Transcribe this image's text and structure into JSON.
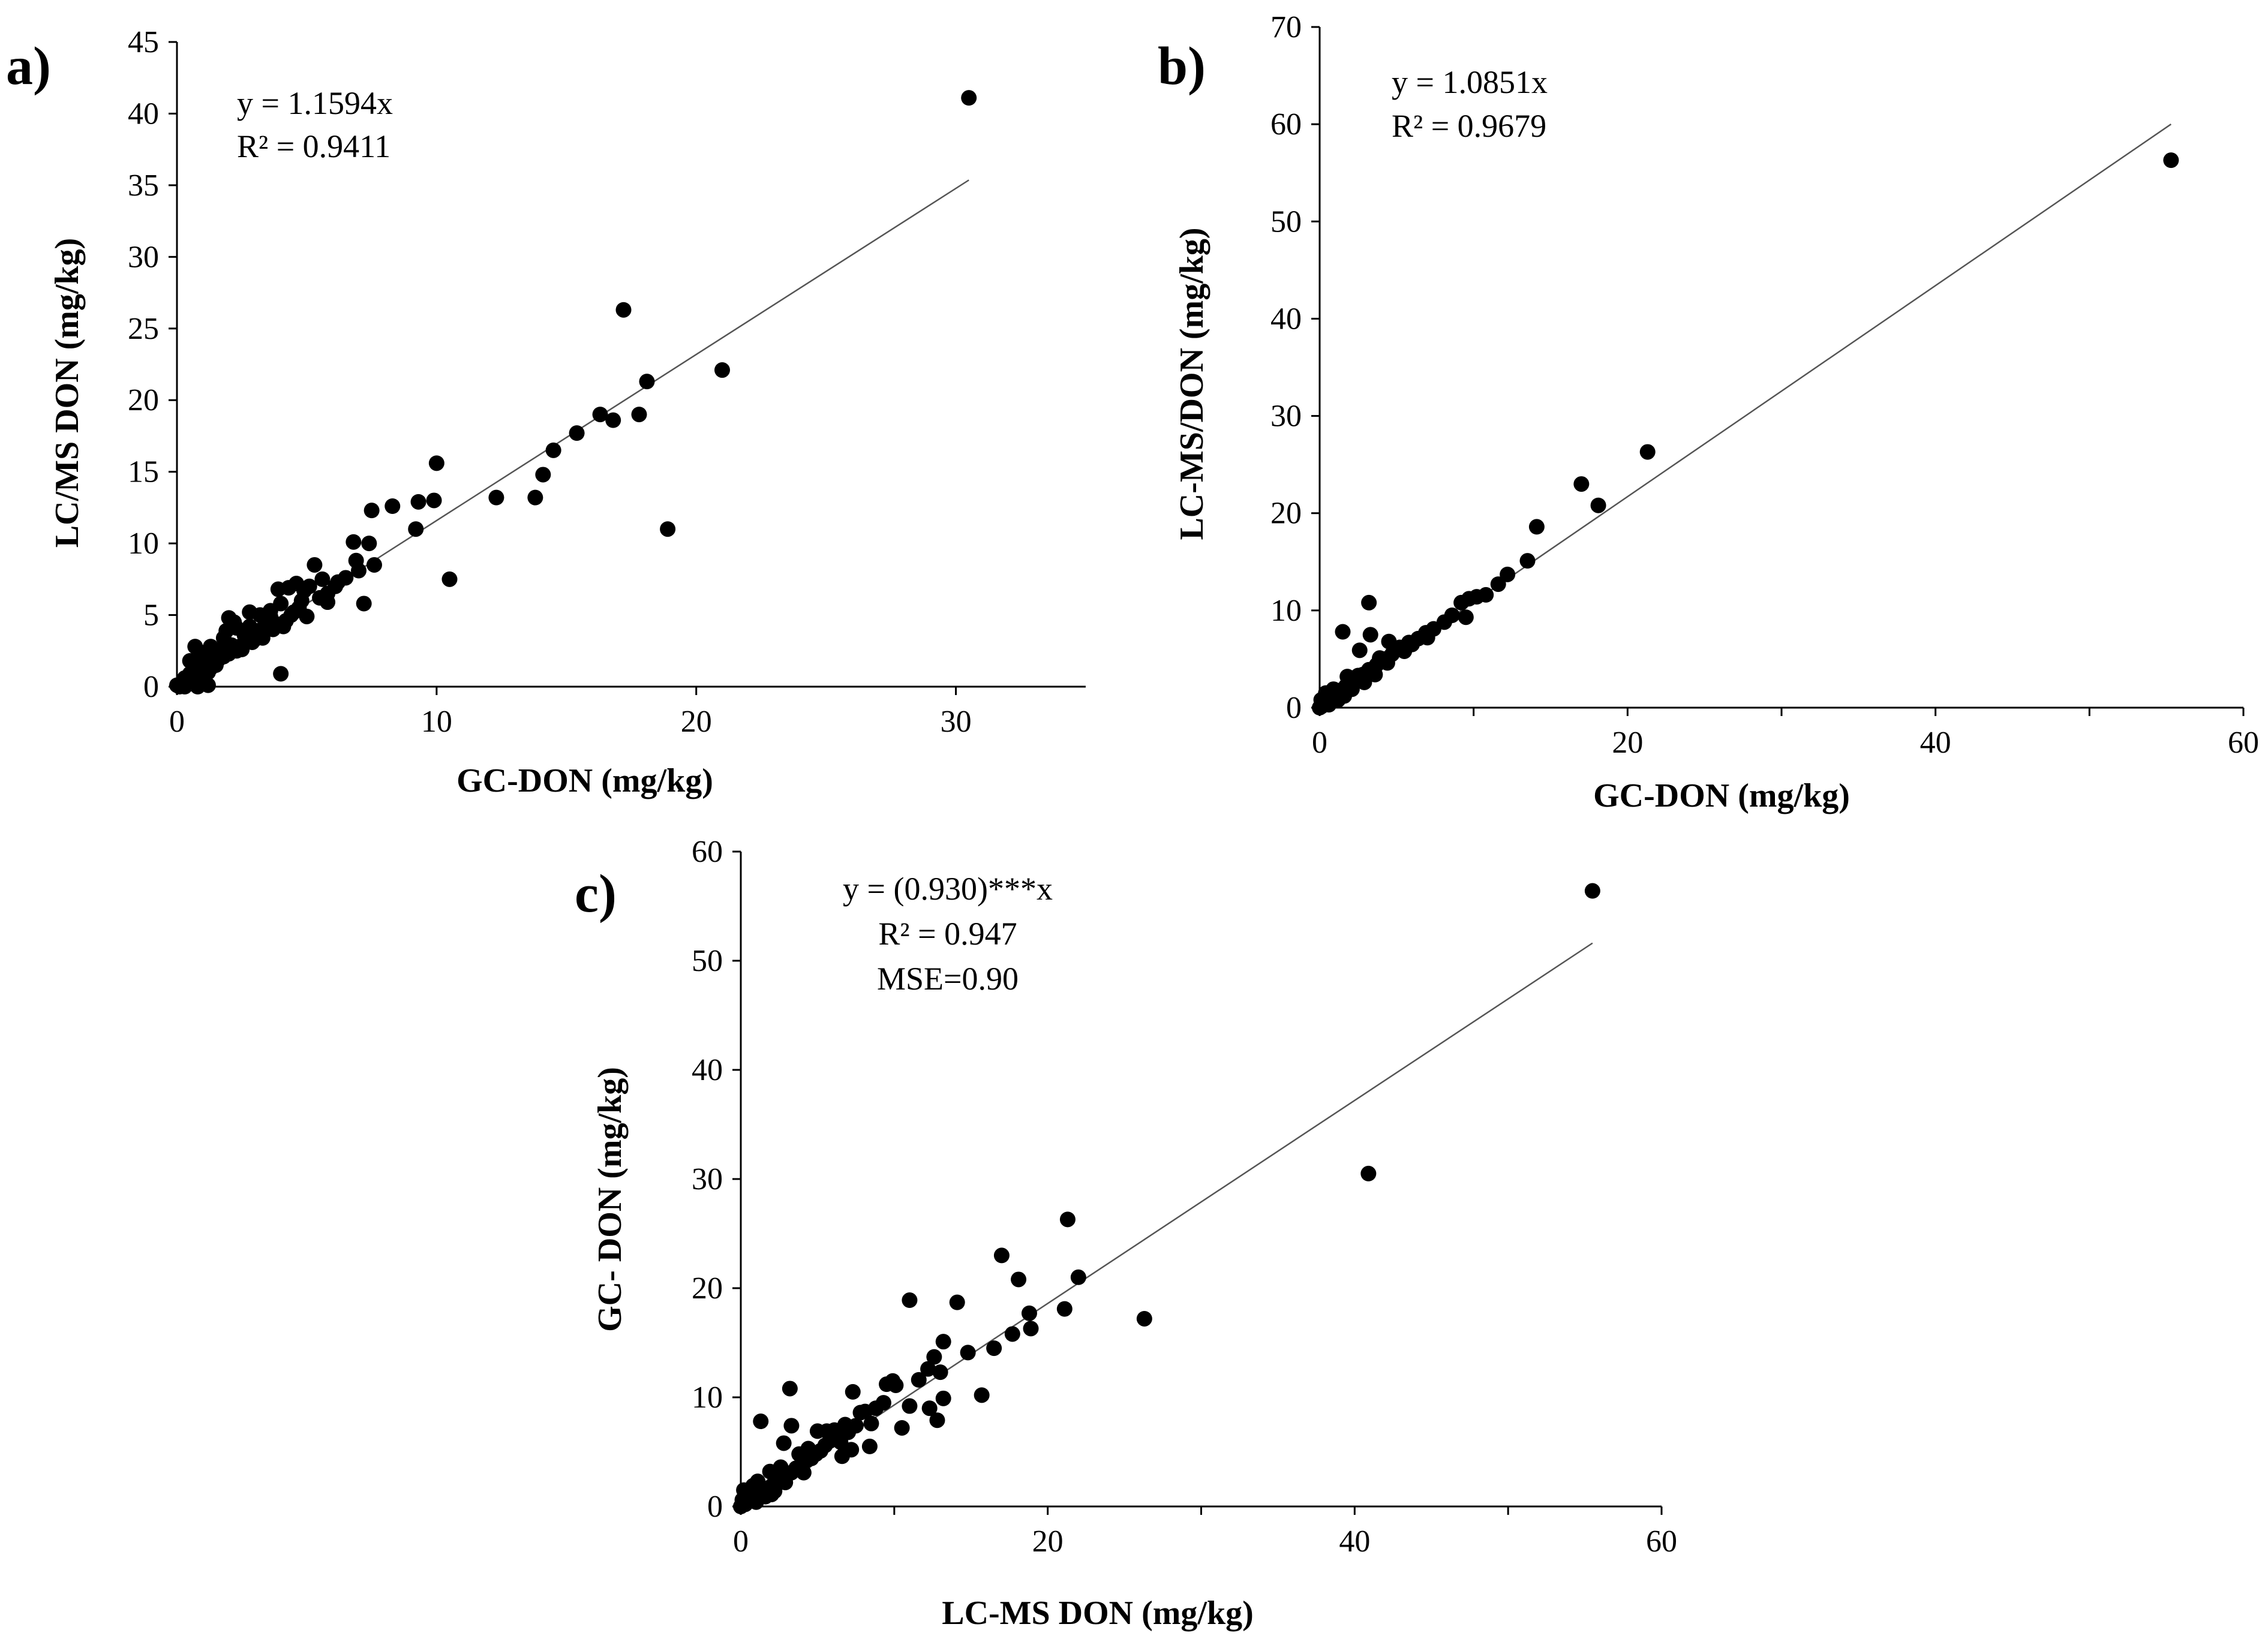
{
  "chart_data": [
    {
      "id": "a",
      "type": "scatter",
      "panel_label": "a)",
      "xlabel": "GC-DON (mg/kg)",
      "ylabel": "LC/MS DON (mg/kg)",
      "xlim": [
        0,
        35
      ],
      "ylim": [
        0,
        45
      ],
      "xticks": [
        "0",
        "10",
        "20",
        "30"
      ],
      "xtick_values": [
        0,
        10,
        20,
        30
      ],
      "yticks": [
        "0",
        "5",
        "10",
        "15",
        "20",
        "25",
        "30",
        "35",
        "40",
        "45"
      ],
      "ytick_values": [
        0,
        5,
        10,
        15,
        20,
        25,
        30,
        35,
        40,
        45
      ],
      "x_minor_ticks": false,
      "trendline": {
        "slope": 1.1594,
        "x_range": [
          0,
          30.5
        ]
      },
      "annotations": [
        "y = 1.1594x",
        "R² = 0.9411"
      ],
      "points": [
        [
          30.5,
          41.1
        ],
        [
          17.2,
          26.3
        ],
        [
          21.0,
          22.1
        ],
        [
          18.1,
          21.3
        ],
        [
          17.8,
          19.0
        ],
        [
          16.3,
          19.0
        ],
        [
          16.8,
          18.6
        ],
        [
          15.4,
          17.7
        ],
        [
          14.5,
          16.5
        ],
        [
          18.9,
          11.0
        ],
        [
          10.0,
          15.6
        ],
        [
          14.1,
          14.8
        ],
        [
          12.3,
          13.2
        ],
        [
          13.8,
          13.2
        ],
        [
          9.3,
          12.9
        ],
        [
          9.9,
          13.0
        ],
        [
          8.3,
          12.6
        ],
        [
          7.5,
          12.3
        ],
        [
          9.2,
          11.0
        ],
        [
          6.8,
          10.1
        ],
        [
          7.4,
          10.0
        ],
        [
          10.5,
          7.5
        ],
        [
          7.2,
          5.8
        ],
        [
          4.0,
          0.9
        ],
        [
          6.9,
          8.8
        ],
        [
          7.6,
          8.5
        ],
        [
          5.3,
          8.5
        ],
        [
          7.0,
          8.1
        ],
        [
          6.2,
          7.3
        ],
        [
          5.6,
          7.5
        ],
        [
          5.1,
          7.0
        ],
        [
          4.6,
          7.2
        ],
        [
          4.3,
          6.9
        ],
        [
          5.8,
          6.5
        ],
        [
          4.8,
          6.0
        ],
        [
          4.0,
          5.8
        ],
        [
          3.6,
          5.3
        ],
        [
          3.2,
          5.0
        ],
        [
          3.4,
          4.4
        ],
        [
          2.8,
          4.2
        ],
        [
          2.2,
          4.5
        ],
        [
          2.0,
          4.8
        ],
        [
          1.9,
          3.9
        ],
        [
          2.6,
          3.6
        ],
        [
          3.0,
          3.8
        ],
        [
          3.9,
          4.3
        ],
        [
          5.0,
          4.9
        ],
        [
          5.8,
          5.9
        ],
        [
          4.5,
          5.2
        ],
        [
          4.2,
          4.6
        ],
        [
          3.7,
          4.0
        ],
        [
          3.3,
          3.4
        ],
        [
          2.9,
          3.1
        ],
        [
          2.4,
          2.8
        ],
        [
          2.1,
          2.9
        ],
        [
          1.7,
          2.6
        ],
        [
          1.5,
          2.2
        ],
        [
          1.3,
          2.8
        ],
        [
          1.1,
          2.4
        ],
        [
          0.9,
          2.0
        ],
        [
          0.7,
          2.8
        ],
        [
          0.5,
          1.8
        ],
        [
          0.8,
          1.2
        ],
        [
          1.0,
          1.5
        ],
        [
          1.2,
          1.0
        ],
        [
          1.4,
          1.7
        ],
        [
          1.6,
          1.9
        ],
        [
          1.8,
          2.1
        ],
        [
          2.3,
          2.5
        ],
        [
          2.7,
          3.2
        ],
        [
          3.1,
          3.9
        ],
        [
          3.5,
          4.1
        ],
        [
          4.4,
          5.0
        ],
        [
          0.3,
          0.6
        ],
        [
          0.5,
          0.9
        ],
        [
          0.2,
          0.2
        ],
        [
          0.4,
          0.4
        ],
        [
          0.6,
          0.5
        ],
        [
          0.9,
          0.7
        ],
        [
          1.1,
          0.3
        ],
        [
          1.2,
          0.1
        ],
        [
          0.8,
          0.0
        ],
        [
          0.1,
          0.0
        ],
        [
          0.0,
          0.1
        ],
        [
          0.3,
          0.0
        ],
        [
          0.6,
          0.2
        ],
        [
          1.0,
          0.9
        ],
        [
          1.3,
          1.3
        ],
        [
          1.5,
          1.5
        ],
        [
          2.0,
          2.3
        ],
        [
          2.5,
          2.6
        ],
        [
          3.0,
          3.3
        ],
        [
          3.8,
          4.4
        ],
        [
          4.1,
          4.2
        ],
        [
          4.7,
          5.5
        ],
        [
          5.5,
          6.2
        ],
        [
          6.1,
          7.0
        ],
        [
          6.5,
          7.6
        ],
        [
          3.9,
          6.8
        ],
        [
          4.9,
          6.7
        ],
        [
          1.8,
          3.4
        ],
        [
          2.3,
          4.1
        ],
        [
          0.7,
          1.4
        ],
        [
          1.4,
          2.6
        ],
        [
          2.8,
          5.2
        ],
        [
          3.6,
          4.9
        ]
      ]
    },
    {
      "id": "b",
      "type": "scatter",
      "panel_label": "b)",
      "xlabel": "GC-DON (mg/kg)",
      "ylabel": "LC-MS/DON (mg/kg)",
      "xlim": [
        0,
        60
      ],
      "ylim": [
        0,
        70
      ],
      "xticks": [
        "0",
        "20",
        "40",
        "60"
      ],
      "xtick_values": [
        0,
        20,
        40,
        60
      ],
      "yticks": [
        "0",
        "10",
        "20",
        "30",
        "40",
        "50",
        "60",
        "70"
      ],
      "ytick_values": [
        0,
        10,
        20,
        30,
        40,
        50,
        60,
        70
      ],
      "x_minor_ticks": true,
      "trendline": {
        "slope": 1.0851,
        "x_range": [
          0,
          55.3
        ]
      },
      "annotations": [
        "y = 1.0851x",
        "R² = 0.9679"
      ],
      "points": [
        [
          55.3,
          56.3
        ],
        [
          21.3,
          26.3
        ],
        [
          17.0,
          23.0
        ],
        [
          18.1,
          20.8
        ],
        [
          14.1,
          18.6
        ],
        [
          13.5,
          15.1
        ],
        [
          12.2,
          13.7
        ],
        [
          11.6,
          12.7
        ],
        [
          10.8,
          11.6
        ],
        [
          10.2,
          11.4
        ],
        [
          9.7,
          11.2
        ],
        [
          9.2,
          10.8
        ],
        [
          8.6,
          9.5
        ],
        [
          9.5,
          9.3
        ],
        [
          8.1,
          8.8
        ],
        [
          7.4,
          8.1
        ],
        [
          6.9,
          7.7
        ],
        [
          6.4,
          7.1
        ],
        [
          5.8,
          6.7
        ],
        [
          5.2,
          6.2
        ],
        [
          4.7,
          5.5
        ],
        [
          4.2,
          5.0
        ],
        [
          3.7,
          4.4
        ],
        [
          3.2,
          3.9
        ],
        [
          2.8,
          3.4
        ],
        [
          2.4,
          3.0
        ],
        [
          2.0,
          2.6
        ],
        [
          1.7,
          2.2
        ],
        [
          1.4,
          1.8
        ],
        [
          1.1,
          1.4
        ],
        [
          0.8,
          1.0
        ],
        [
          0.5,
          0.7
        ],
        [
          0.3,
          0.4
        ],
        [
          0.1,
          0.1
        ],
        [
          0.0,
          0.0
        ],
        [
          0.2,
          0.6
        ],
        [
          3.2,
          10.8
        ],
        [
          1.5,
          7.8
        ],
        [
          3.3,
          7.5
        ],
        [
          2.6,
          5.9
        ],
        [
          4.5,
          6.8
        ],
        [
          6.0,
          6.5
        ],
        [
          5.5,
          5.8
        ],
        [
          7.0,
          7.2
        ],
        [
          1.8,
          3.2
        ],
        [
          2.2,
          2.9
        ],
        [
          0.9,
          1.9
        ],
        [
          0.4,
          1.5
        ],
        [
          0.6,
          0.3
        ],
        [
          1.2,
          0.8
        ],
        [
          1.6,
          1.2
        ],
        [
          2.1,
          1.9
        ],
        [
          2.9,
          2.6
        ],
        [
          3.6,
          3.4
        ],
        [
          4.4,
          4.6
        ],
        [
          0.1,
          0.8
        ],
        [
          0.7,
          1.2
        ],
        [
          1.9,
          2.5
        ],
        [
          2.5,
          3.3
        ],
        [
          3.9,
          5.1
        ]
      ]
    },
    {
      "id": "c",
      "type": "scatter",
      "panel_label": "c)",
      "xlabel": "LC-MS DON (mg/kg)",
      "ylabel": "GC- DON (mg/kg)",
      "xlim": [
        0,
        60
      ],
      "ylim": [
        0,
        60
      ],
      "xticks": [
        "0",
        "20",
        "40",
        "60"
      ],
      "xtick_values": [
        0,
        20,
        40,
        60
      ],
      "yticks": [
        "0",
        "10",
        "20",
        "30",
        "40",
        "50",
        "60"
      ],
      "ytick_values": [
        0,
        10,
        20,
        30,
        40,
        50,
        60
      ],
      "x_minor_ticks": true,
      "trendline": {
        "slope": 0.93,
        "x_range": [
          0,
          55.5
        ]
      },
      "annotations": [
        "y = (0.930)***x",
        "R² = 0.947",
        "MSE=0.90"
      ],
      "points": [
        [
          55.5,
          56.4
        ],
        [
          40.9,
          30.5
        ],
        [
          26.3,
          17.2
        ],
        [
          21.3,
          26.3
        ],
        [
          22.0,
          21.0
        ],
        [
          21.1,
          18.1
        ],
        [
          18.1,
          20.8
        ],
        [
          17.0,
          23.0
        ],
        [
          18.8,
          17.7
        ],
        [
          18.9,
          16.3
        ],
        [
          17.7,
          15.8
        ],
        [
          16.5,
          14.5
        ],
        [
          15.7,
          10.2
        ],
        [
          14.8,
          14.1
        ],
        [
          14.1,
          18.7
        ],
        [
          13.2,
          15.1
        ],
        [
          13.0,
          12.3
        ],
        [
          12.6,
          13.7
        ],
        [
          12.2,
          12.6
        ],
        [
          11.0,
          18.9
        ],
        [
          11.6,
          11.6
        ],
        [
          11.0,
          9.2
        ],
        [
          10.1,
          11.1
        ],
        [
          9.5,
          11.2
        ],
        [
          9.3,
          9.5
        ],
        [
          8.8,
          9.0
        ],
        [
          8.5,
          7.6
        ],
        [
          8.1,
          8.7
        ],
        [
          7.5,
          7.4
        ],
        [
          7.3,
          10.5
        ],
        [
          7.0,
          6.8
        ],
        [
          6.8,
          7.5
        ],
        [
          6.5,
          5.9
        ],
        [
          6.2,
          6.4
        ],
        [
          5.8,
          6.0
        ],
        [
          5.5,
          5.6
        ],
        [
          5.2,
          5.1
        ],
        [
          4.9,
          4.8
        ],
        [
          4.6,
          4.4
        ],
        [
          4.3,
          4.2
        ],
        [
          4.0,
          3.9
        ],
        [
          3.6,
          3.5
        ],
        [
          3.3,
          3.1
        ],
        [
          3.0,
          2.9
        ],
        [
          2.7,
          2.6
        ],
        [
          2.4,
          2.3
        ],
        [
          2.1,
          2.0
        ],
        [
          1.8,
          1.7
        ],
        [
          1.5,
          1.4
        ],
        [
          1.2,
          1.1
        ],
        [
          0.9,
          0.8
        ],
        [
          0.6,
          0.5
        ],
        [
          0.3,
          0.2
        ],
        [
          0.0,
          0.0
        ],
        [
          3.2,
          10.8
        ],
        [
          1.3,
          7.8
        ],
        [
          3.3,
          7.4
        ],
        [
          2.8,
          5.8
        ],
        [
          5.0,
          6.9
        ],
        [
          9.9,
          11.5
        ],
        [
          10.5,
          7.2
        ],
        [
          12.3,
          9.0
        ],
        [
          13.2,
          9.9
        ],
        [
          12.8,
          7.9
        ],
        [
          0.2,
          1.5
        ],
        [
          0.8,
          1.9
        ],
        [
          1.9,
          3.2
        ],
        [
          2.6,
          3.6
        ],
        [
          3.8,
          4.8
        ],
        [
          4.4,
          5.3
        ],
        [
          5.6,
          6.9
        ],
        [
          6.1,
          7.0
        ],
        [
          7.8,
          8.6
        ],
        [
          0.5,
          0.9
        ],
        [
          1.0,
          0.4
        ],
        [
          1.6,
          0.9
        ],
        [
          2.2,
          1.4
        ],
        [
          2.9,
          2.2
        ],
        [
          4.1,
          3.1
        ],
        [
          0.1,
          0.6
        ],
        [
          0.4,
          1.2
        ],
        [
          1.1,
          2.3
        ],
        [
          6.6,
          4.6
        ],
        [
          8.4,
          5.5
        ],
        [
          2.0,
          1.1
        ],
        [
          7.2,
          5.2
        ]
      ]
    }
  ]
}
